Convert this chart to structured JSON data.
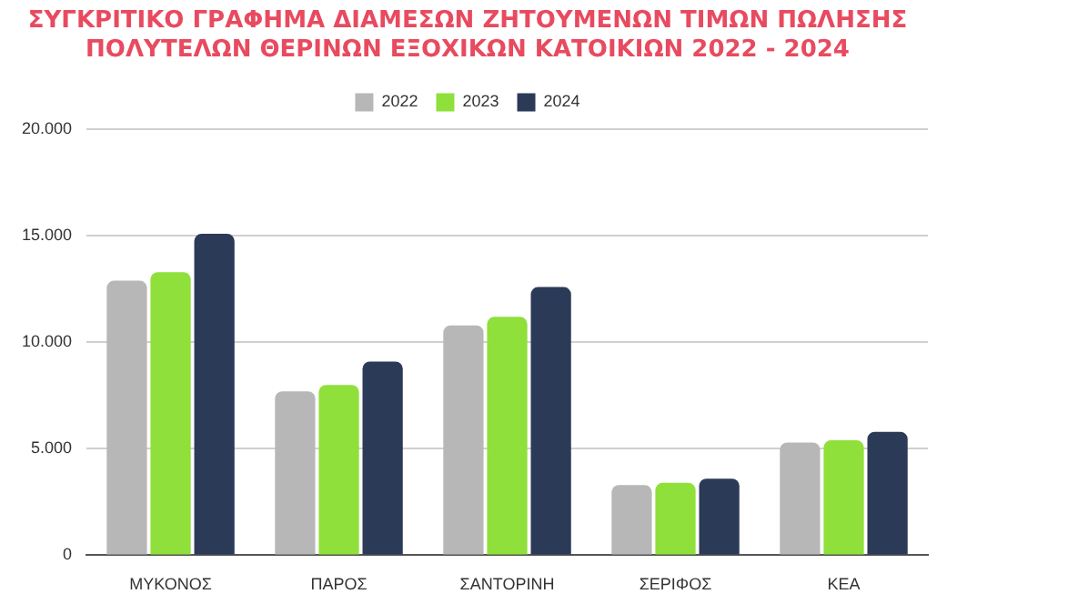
{
  "chart_data": {
    "type": "bar",
    "title": [
      "ΣΥΓΚΡΙΤΙΚΟ ΓΡΑΦΗΜΑ ΔΙΑΜΕΣΩΝ ΖΗΤΟΥΜΕΝΩΝ ΤΙΜΩΝ ΠΩΛΗΣΗΣ",
      "ΠΟΛΥΤΕΛΩΝ ΘΕΡΙΝΩΝ ΕΞΟΧΙΚΩΝ ΚΑΤΟΙΚΙΩΝ 2022 - 2024"
    ],
    "categories": [
      "ΜΥΚΟΝΟΣ",
      "ΠΑΡΟΣ",
      "ΣΑΝΤΟΡΙΝΗ",
      "ΣΕΡΙΦΟΣ",
      "ΚΕΑ"
    ],
    "series": [
      {
        "name": "2022",
        "color": "#b7b7b7",
        "values": [
          12900,
          7700,
          10800,
          3300,
          5300
        ]
      },
      {
        "name": "2023",
        "color": "#8fe03a",
        "values": [
          13300,
          8000,
          11200,
          3400,
          5400
        ]
      },
      {
        "name": "2024",
        "color": "#2b3a57",
        "values": [
          15100,
          9100,
          12600,
          3600,
          5800
        ]
      }
    ],
    "ylim": [
      0,
      20000
    ],
    "yticks": [
      {
        "value": 0,
        "label": "0"
      },
      {
        "value": 5000,
        "label": "5.000"
      },
      {
        "value": 10000,
        "label": "10.000"
      },
      {
        "value": 15000,
        "label": "15.000"
      },
      {
        "value": 20000,
        "label": "20.000"
      }
    ],
    "grid": "y",
    "legend": "top"
  }
}
